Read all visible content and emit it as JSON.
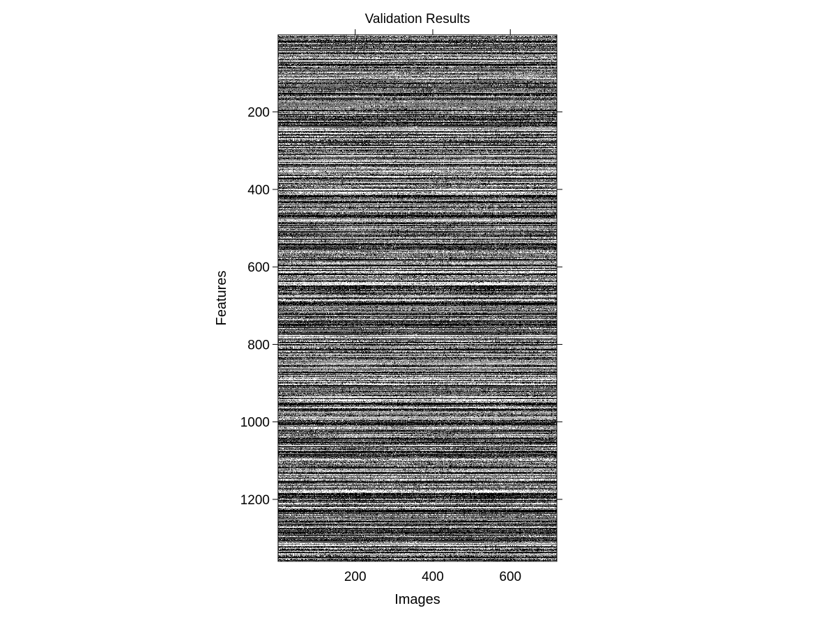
{
  "chart_data": {
    "type": "heatmap",
    "title": "Validation Results",
    "xlabel": "Images",
    "ylabel": "Features",
    "x_range": [
      1,
      720
    ],
    "y_range": [
      1,
      1360
    ],
    "y_direction": "down",
    "colormap": "gray",
    "x_ticks": [
      200,
      400,
      600
    ],
    "y_ticks": [
      200,
      400,
      600,
      800,
      1000,
      1200
    ],
    "x_tick_labels": [
      "200",
      "400",
      "600"
    ],
    "y_tick_labels": [
      "200",
      "400",
      "600",
      "800",
      "1000",
      "1200"
    ],
    "grid": false,
    "colorbar": false,
    "cell_values": "binary-valued matrix (black/white) with dense horizontal streaks per feature row; individual cell values not legible"
  }
}
